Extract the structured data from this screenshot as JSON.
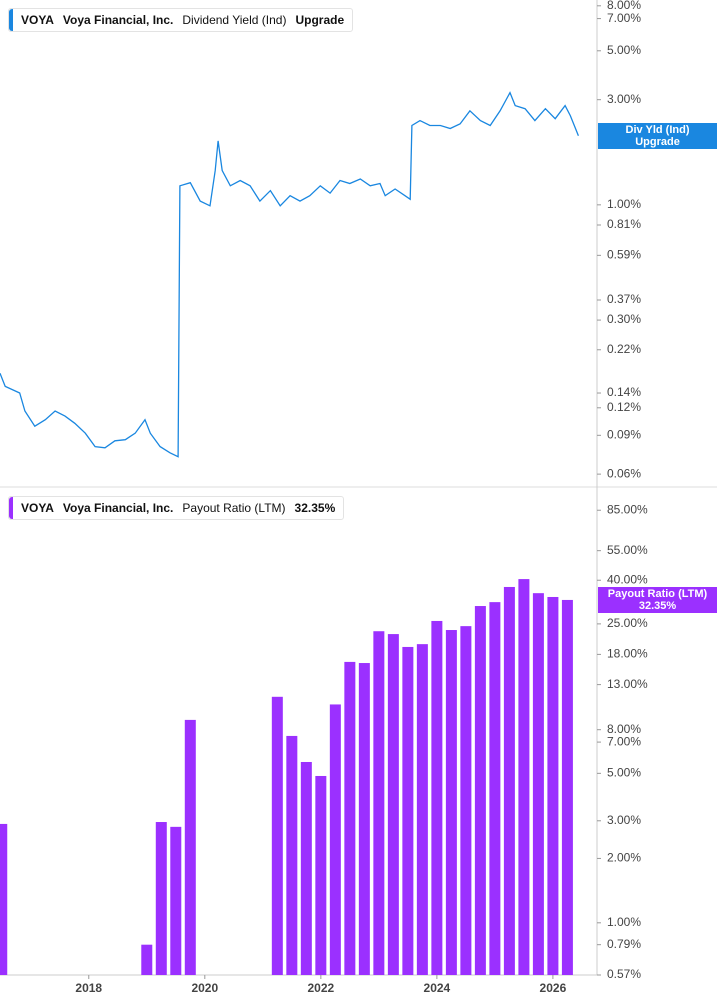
{
  "chart_data": [
    {
      "type": "line",
      "ticker": "VOYA",
      "company": "Voya Financial, Inc.",
      "status": "Upgrade",
      "tag_label": "Div Yld (Ind)",
      "log_scale": true,
      "xlim": [
        2016.47,
        2026.76
      ],
      "ylim": [
        0.053,
        8.5
      ],
      "yticks": [
        {
          "value": 8,
          "label": "8.00%"
        },
        {
          "value": 7,
          "label": "7.00%"
        },
        {
          "value": 5,
          "label": "5.00%"
        },
        {
          "value": 3,
          "label": "3.00%"
        },
        {
          "value": 1,
          "label": "1.00%"
        },
        {
          "value": 0.81,
          "label": "0.81%"
        },
        {
          "value": 0.59,
          "label": "0.59%"
        },
        {
          "value": 0.37,
          "label": "0.37%"
        },
        {
          "value": 0.3,
          "label": "0.30%"
        },
        {
          "value": 0.22,
          "label": "0.22%"
        },
        {
          "value": 0.14,
          "label": "0.14%"
        },
        {
          "value": 0.12,
          "label": "0.12%"
        },
        {
          "value": 0.09,
          "label": "0.09%"
        },
        {
          "value": 0.06,
          "label": "0.06%"
        }
      ],
      "series": [
        {
          "name": "Dividend Yield (Ind)",
          "color": "#1a87e0",
          "x": [
            2016.47,
            2016.56,
            2016.81,
            2016.9,
            2017.07,
            2017.25,
            2017.42,
            2017.59,
            2017.76,
            2017.94,
            2018.11,
            2018.28,
            2018.45,
            2018.63,
            2018.8,
            2018.97,
            2019.06,
            2019.23,
            2019.4,
            2019.54,
            2019.57,
            2019.75,
            2019.92,
            2020.09,
            2020.18,
            2020.23,
            2020.3,
            2020.44,
            2020.61,
            2020.78,
            2020.95,
            2021.13,
            2021.3,
            2021.47,
            2021.64,
            2021.81,
            2021.99,
            2022.16,
            2022.33,
            2022.5,
            2022.68,
            2022.85,
            2023.02,
            2023.11,
            2023.28,
            2023.45,
            2023.54,
            2023.57,
            2023.71,
            2023.88,
            2024.06,
            2024.23,
            2024.4,
            2024.57,
            2024.75,
            2024.92,
            2025.09,
            2025.26,
            2025.35,
            2025.52,
            2025.69,
            2025.87,
            2026.04,
            2026.21,
            2026.3,
            2026.44
          ],
          "values": [
            0.172,
            0.15,
            0.14,
            0.116,
            0.099,
            0.106,
            0.116,
            0.11,
            0.102,
            0.092,
            0.08,
            0.079,
            0.085,
            0.086,
            0.092,
            0.106,
            0.092,
            0.08,
            0.075,
            0.072,
            1.22,
            1.26,
            1.04,
            0.99,
            1.43,
            1.95,
            1.43,
            1.22,
            1.29,
            1.22,
            1.04,
            1.16,
            0.99,
            1.1,
            1.04,
            1.1,
            1.22,
            1.13,
            1.29,
            1.25,
            1.31,
            1.22,
            1.25,
            1.1,
            1.18,
            1.1,
            1.06,
            2.29,
            2.41,
            2.29,
            2.29,
            2.22,
            2.33,
            2.67,
            2.41,
            2.29,
            2.67,
            3.23,
            2.82,
            2.73,
            2.41,
            2.73,
            2.46,
            2.82,
            2.54,
            2.06
          ]
        }
      ]
    },
    {
      "type": "bar",
      "ticker": "VOYA",
      "company": "Voya Financial, Inc.",
      "legend_value": "32.35%",
      "log_scale": true,
      "xlim": [
        2016.47,
        2026.76
      ],
      "ylim": [
        0.57,
        108
      ],
      "xticks": [
        2018,
        2020,
        2022,
        2024,
        2026
      ],
      "yticks": [
        {
          "value": 85,
          "label": "85.00%"
        },
        {
          "value": 55,
          "label": "55.00%"
        },
        {
          "value": 40,
          "label": "40.00%"
        },
        {
          "value": 25,
          "label": "25.00%"
        },
        {
          "value": 18,
          "label": "18.00%"
        },
        {
          "value": 13,
          "label": "13.00%"
        },
        {
          "value": 8,
          "label": "8.00%"
        },
        {
          "value": 7,
          "label": "7.00%"
        },
        {
          "value": 5,
          "label": "5.00%"
        },
        {
          "value": 3,
          "label": "3.00%"
        },
        {
          "value": 2,
          "label": "2.00%"
        },
        {
          "value": 1,
          "label": "1.00%"
        },
        {
          "value": 0.79,
          "label": "0.79%"
        },
        {
          "value": 0.57,
          "label": "0.57%"
        }
      ],
      "series": [
        {
          "name": "Payout Ratio (LTM)",
          "color": "#9b30ff",
          "x": [
            2016.5,
            2019.0,
            2019.25,
            2019.5,
            2019.75,
            2021.25,
            2021.5,
            2021.75,
            2022.0,
            2022.25,
            2022.5,
            2022.75,
            2023.0,
            2023.25,
            2023.5,
            2023.75,
            2024.0,
            2024.25,
            2024.5,
            2024.75,
            2025.0,
            2025.25,
            2025.5,
            2025.75,
            2026.0,
            2026.25
          ],
          "values": [
            2.9,
            0.79,
            2.96,
            2.81,
            8.89,
            11.4,
            7.48,
            5.65,
            4.86,
            10.5,
            16.6,
            16.4,
            23.1,
            22.4,
            19.5,
            20.1,
            25.8,
            23.4,
            24.4,
            30.3,
            31.6,
            37.2,
            40.5,
            34.8,
            33.4,
            32.35
          ]
        }
      ]
    }
  ]
}
